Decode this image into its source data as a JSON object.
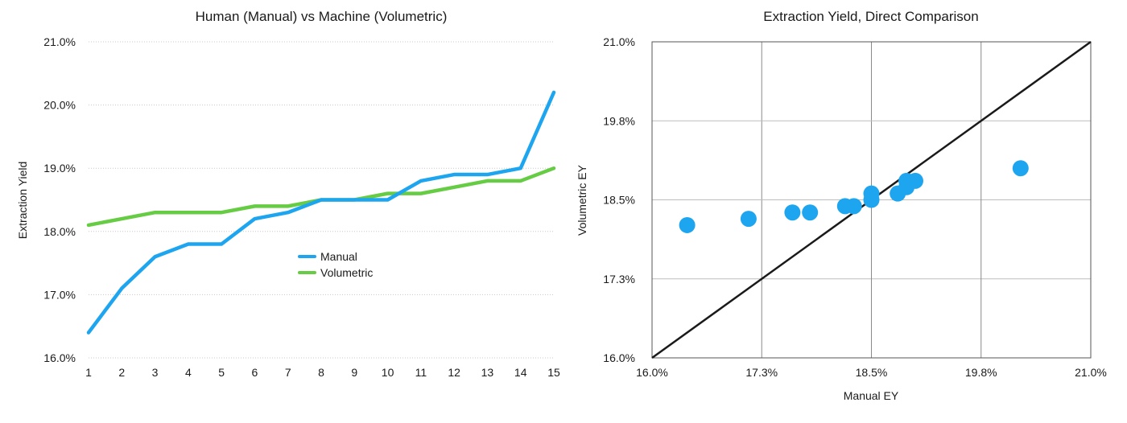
{
  "chart_data": [
    {
      "type": "line",
      "title": "Human (Manual) vs Machine (Volumetric)",
      "xlabel": "",
      "ylabel": "Extraction Yield",
      "x": [
        1,
        2,
        3,
        4,
        5,
        6,
        7,
        8,
        9,
        10,
        11,
        12,
        13,
        14,
        15
      ],
      "xlim": [
        1,
        15
      ],
      "ylim": [
        16.0,
        21.0
      ],
      "yticks": [
        "16.0%",
        "17.0%",
        "18.0%",
        "19.0%",
        "20.0%",
        "21.0%"
      ],
      "grid": "horizontal",
      "legend_position": "center",
      "series": [
        {
          "name": "Manual",
          "color": "#1ea5f0",
          "values": [
            16.4,
            17.1,
            17.6,
            17.8,
            17.8,
            18.2,
            18.3,
            18.5,
            18.5,
            18.5,
            18.8,
            18.9,
            18.9,
            19.0,
            20.2
          ]
        },
        {
          "name": "Volumetric",
          "color": "#66cc44",
          "values": [
            18.1,
            18.2,
            18.3,
            18.3,
            18.3,
            18.4,
            18.4,
            18.5,
            18.5,
            18.6,
            18.6,
            18.7,
            18.8,
            18.8,
            19.0
          ]
        }
      ]
    },
    {
      "type": "scatter",
      "title": "Extraction Yield, Direct Comparison",
      "xlabel": "Manual EY",
      "ylabel": "Volumetric EY",
      "xlim": [
        16.0,
        21.0
      ],
      "ylim": [
        16.0,
        21.0
      ],
      "xticks": [
        "16.0%",
        "17.3%",
        "18.5%",
        "19.8%",
        "21.0%"
      ],
      "yticks": [
        "16.0%",
        "17.3%",
        "18.5%",
        "19.8%",
        "21.0%"
      ],
      "grid": "both",
      "point_color": "#1ea5f0",
      "line_color": "#1a1a1a",
      "reference_line": [
        [
          16.0,
          16.0
        ],
        [
          21.0,
          21.0
        ]
      ],
      "points": [
        [
          16.4,
          18.1
        ],
        [
          17.1,
          18.2
        ],
        [
          17.6,
          18.3
        ],
        [
          17.8,
          18.3
        ],
        [
          18.2,
          18.4
        ],
        [
          18.3,
          18.4
        ],
        [
          18.5,
          18.5
        ],
        [
          18.5,
          18.6
        ],
        [
          18.8,
          18.6
        ],
        [
          18.9,
          18.7
        ],
        [
          18.9,
          18.8
        ],
        [
          19.0,
          18.8
        ],
        [
          20.2,
          19.0
        ]
      ]
    }
  ]
}
